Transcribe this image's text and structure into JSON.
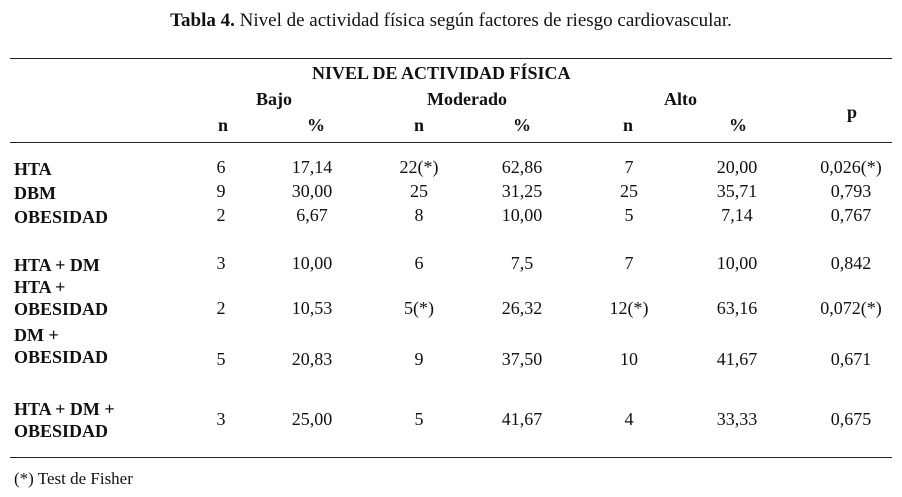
{
  "caption": {
    "label": "Tabla 4.",
    "text": " Nivel de actividad física según factores de riesgo cardiovascular."
  },
  "header": {
    "group_title": "NIVEL DE ACTIVIDAD FÍSICA",
    "bajo": "Bajo",
    "moderado": "Moderado",
    "alto": "Alto",
    "p": "p",
    "n": "n",
    "pct": "%"
  },
  "rows": [
    {
      "label_lines": [
        "HTA"
      ],
      "cells": [
        "6",
        "17,14",
        "22(*)",
        "62,86",
        "7",
        "20,00",
        "0,026(*)"
      ]
    },
    {
      "label_lines": [
        "DBM"
      ],
      "cells": [
        "9",
        "30,00",
        "25",
        "31,25",
        "25",
        "35,71",
        "0,793"
      ]
    },
    {
      "label_lines": [
        "OBESIDAD"
      ],
      "cells": [
        "2",
        "6,67",
        "8",
        "10,00",
        "5",
        "7,14",
        "0,767"
      ]
    },
    {
      "label_lines": [
        "HTA + DM"
      ],
      "cells": [
        "3",
        "10,00",
        "6",
        "7,5",
        "7",
        "10,00",
        "0,842"
      ]
    },
    {
      "label_lines": [
        "HTA +",
        "OBESIDAD"
      ],
      "cells": [
        "2",
        "10,53",
        "5(*)",
        "26,32",
        "12(*)",
        "63,16",
        "0,072(*)"
      ]
    },
    {
      "label_lines": [
        "DM +",
        "OBESIDAD"
      ],
      "cells": [
        "5",
        "20,83",
        "9",
        "37,50",
        "10",
        "41,67",
        "0,671"
      ]
    },
    {
      "label_lines": [
        "HTA + DM +",
        "OBESIDAD"
      ],
      "cells": [
        "3",
        "25,00",
        "5",
        "41,67",
        "4",
        "33,33",
        "0,675"
      ]
    }
  ],
  "footnote": "(*) Test de Fisher"
}
